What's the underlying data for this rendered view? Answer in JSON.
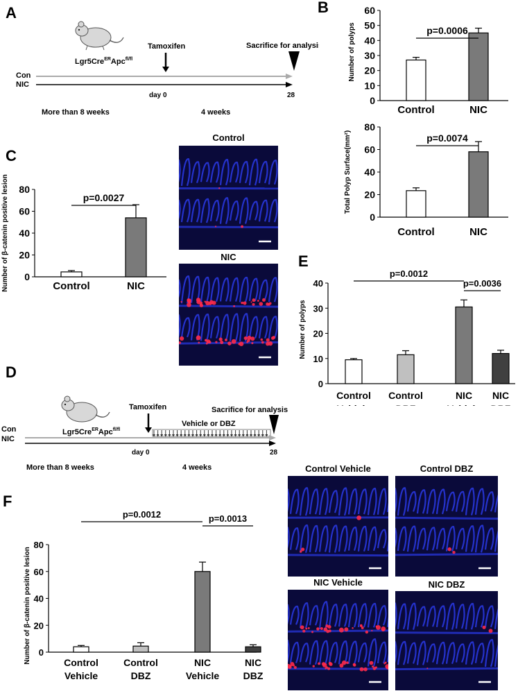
{
  "panels": {
    "A": "A",
    "B": "B",
    "C": "C",
    "D": "D",
    "E": "E",
    "F": "F"
  },
  "timeline_a": {
    "mouse_label": "Lgr5CreERApcfl/fl",
    "mouse_main": "Lgr5Cre",
    "mouse_sup1": "ER",
    "mouse_mid": "Apc",
    "mouse_sup2": "fl/fl",
    "event_tamoxifen": "Tamoxifen",
    "event_sacrifice": "Sacrifice for analysis",
    "group_con": "Con",
    "group_nic": "NIC",
    "day0": "day 0",
    "day28": "28",
    "period1": "More than 8 weeks",
    "period2": "4 weeks"
  },
  "timeline_d": {
    "mouse_main": "Lgr5Cre",
    "mouse_sup1": "ER",
    "mouse_mid": "Apc",
    "mouse_sup2": "fl/fl",
    "event_tamoxifen": "Tamoxifen",
    "event_sacrifice": "Sacrifice for analysis",
    "treatment": "Vehicle or DBZ",
    "group_con": "Con",
    "group_nic": "NIC",
    "day0": "day 0",
    "day28": "28",
    "period1": "More than 8 weeks",
    "period2": "4 weeks"
  },
  "micrographs": {
    "c_top": "Control",
    "c_bottom": "NIC",
    "f_tl": "Control Vehicle",
    "f_tr": "Control DBZ",
    "f_bl": "NIC Vehicle",
    "f_br": "NIC DBZ"
  },
  "colors": {
    "control": "#ffffff",
    "control_dbz": "#c0c0c0",
    "nic": "#7a7a7a",
    "nic_dbz": "#404040",
    "tissue_bg": "#0a0a3a",
    "dapi": "#2a3ae8",
    "catenin": "#ff2a4a"
  },
  "chart_data": [
    {
      "id": "B1",
      "type": "bar",
      "categories": [
        "Control",
        "NIC"
      ],
      "values": [
        27,
        45
      ],
      "errors": [
        1.8,
        3.2
      ],
      "ylabel": "Number of polyps",
      "ylim": [
        0,
        60
      ],
      "yticks": [
        0,
        10,
        20,
        30,
        40,
        50,
        60
      ],
      "comparisons": [
        {
          "from": 0,
          "to": 1,
          "label": "p=0.0006"
        }
      ],
      "colors": [
        "#ffffff",
        "#7a7a7a"
      ]
    },
    {
      "id": "B2",
      "type": "bar",
      "categories": [
        "Control",
        "NIC"
      ],
      "values": [
        23.5,
        58
      ],
      "errors": [
        2.5,
        9
      ],
      "ylabel": "Total Polyp Surface(mm²)",
      "ylim": [
        0,
        80
      ],
      "yticks": [
        0,
        20,
        40,
        60,
        80
      ],
      "comparisons": [
        {
          "from": 0,
          "to": 1,
          "label": "p=0.0074"
        }
      ],
      "colors": [
        "#ffffff",
        "#7a7a7a"
      ]
    },
    {
      "id": "C",
      "type": "bar",
      "categories": [
        "Control",
        "NIC"
      ],
      "values": [
        4.5,
        54
      ],
      "errors": [
        1.2,
        12
      ],
      "ylabel": "Number of β-catenin positive lesion",
      "ylim": [
        0,
        80
      ],
      "yticks": [
        0,
        20,
        40,
        60,
        80
      ],
      "comparisons": [
        {
          "from": 0,
          "to": 1,
          "label": "p=0.0027"
        }
      ],
      "colors": [
        "#ffffff",
        "#7a7a7a"
      ]
    },
    {
      "id": "E",
      "type": "bar",
      "categories": [
        [
          "Control",
          "Vehicle"
        ],
        [
          "Control",
          "DBZ"
        ],
        [
          "NIC",
          "Vehicle"
        ],
        [
          "NIC",
          "DBZ"
        ]
      ],
      "values": [
        9.5,
        11.5,
        30.5,
        12
      ],
      "errors": [
        0.5,
        1.6,
        2.8,
        1.3
      ],
      "ylabel": "Number of polyps",
      "ylim": [
        0,
        40
      ],
      "yticks": [
        0,
        10,
        20,
        30,
        40
      ],
      "comparisons": [
        {
          "from": 0,
          "to": 2,
          "label": "p=0.0012"
        },
        {
          "from": 2,
          "to": 3,
          "label": "p=0.0036"
        }
      ],
      "colors": [
        "#ffffff",
        "#c0c0c0",
        "#7a7a7a",
        "#404040"
      ]
    },
    {
      "id": "F",
      "type": "bar",
      "categories": [
        [
          "Control",
          "Vehicle"
        ],
        [
          "Control",
          "DBZ"
        ],
        [
          "NIC",
          "Vehicle"
        ],
        [
          "NIC",
          "DBZ"
        ]
      ],
      "values": [
        4,
        4.5,
        60,
        4
      ],
      "errors": [
        1,
        2.5,
        7,
        1.5
      ],
      "ylabel": "Number of β-catenin positive lesion",
      "ylim": [
        0,
        80
      ],
      "yticks": [
        0,
        20,
        40,
        60,
        80
      ],
      "comparisons": [
        {
          "from": 0,
          "to": 2,
          "label": "p=0.0012"
        },
        {
          "from": 2,
          "to": 3,
          "label": "p=0.0013"
        }
      ],
      "colors": [
        "#ffffff",
        "#c0c0c0",
        "#7a7a7a",
        "#404040"
      ]
    }
  ]
}
